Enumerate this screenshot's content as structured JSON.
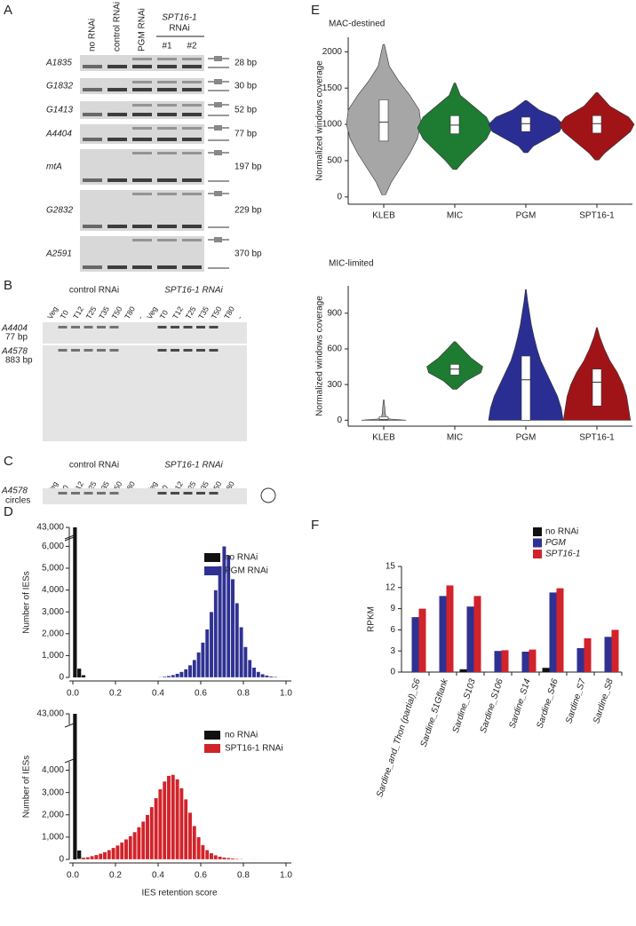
{
  "panel_labels": [
    "A",
    "B",
    "C",
    "D",
    "E",
    "F"
  ],
  "gel_a": {
    "lanes": [
      "no RNAi",
      "control RNAi",
      "PGM RNAi"
    ],
    "group": {
      "name": "SPT16-1",
      "suffix": "RNAi",
      "lanes": [
        "#1",
        "#2"
      ]
    },
    "rows": [
      {
        "name": "A1835",
        "size": "28 bp"
      },
      {
        "name": "G1832",
        "size": "30 bp"
      },
      {
        "name": "G1413",
        "size": "52 bp"
      },
      {
        "name": "A4404",
        "size": "77 bp"
      },
      {
        "name": "mtA",
        "size": "197 bp"
      },
      {
        "name": "G2832",
        "size": "229 bp"
      },
      {
        "name": "A2591",
        "size": "370 bp"
      }
    ]
  },
  "gel_b": {
    "groups": [
      "control RNAi",
      "SPT16-1 RNAi"
    ],
    "lanes": [
      "Veg",
      "T0",
      "T12",
      "T25",
      "T35",
      "T50",
      "T80",
      "-"
    ],
    "rows": [
      {
        "name": "A4404",
        "size": "77 bp"
      },
      {
        "name": "A4578",
        "size": "883 bp"
      }
    ]
  },
  "gel_c": {
    "groups": [
      "control RNAi",
      "SPT16-1 RNAi"
    ],
    "lanes": [
      "Veg",
      "T0",
      "T12",
      "T25",
      "T35",
      "T50",
      "T80",
      "-"
    ],
    "row": {
      "name": "A4578",
      "label": "circles"
    }
  },
  "chart_data": [
    {
      "type": "histogram",
      "ylabel": "Number of IESs",
      "bins": [
        0,
        0.02,
        0.04,
        0.06,
        0.08,
        0.1,
        0.12,
        0.14,
        0.16,
        0.18,
        0.2,
        0.22,
        0.24,
        0.26,
        0.28,
        0.3,
        0.32,
        0.34,
        0.36,
        0.38,
        0.4,
        0.42,
        0.44,
        0.46,
        0.48,
        0.5,
        0.52,
        0.54,
        0.56,
        0.58,
        0.6,
        0.62,
        0.64,
        0.66,
        0.68,
        0.7,
        0.72,
        0.74,
        0.76,
        0.78,
        0.8,
        0.82,
        0.84,
        0.86,
        0.88,
        0.9,
        0.92,
        0.94,
        0.96,
        0.98,
        1
      ],
      "series": [
        {
          "name": "no RNAi",
          "color": "#111111",
          "values": [
            43000,
            400,
            100,
            0,
            0,
            0,
            0,
            0,
            0,
            0,
            0,
            0,
            0,
            0,
            0,
            0,
            0,
            0,
            0,
            0,
            0,
            0,
            0,
            0,
            0,
            0,
            0,
            0,
            0,
            0,
            0,
            0,
            0,
            0,
            0,
            0,
            0,
            0,
            0,
            0,
            0,
            0,
            0,
            0,
            0,
            0,
            0,
            0,
            0,
            0
          ]
        },
        {
          "name": "PGM RNAi",
          "color": "#2f3192",
          "values": [
            0,
            0,
            0,
            0,
            0,
            0,
            0,
            0,
            0,
            0,
            0,
            0,
            0,
            0,
            0,
            0,
            0,
            0,
            0,
            0,
            20,
            40,
            70,
            110,
            170,
            260,
            380,
            560,
            800,
            1150,
            1600,
            2200,
            3000,
            4000,
            5100,
            6000,
            5600,
            4500,
            3400,
            2300,
            1400,
            800,
            450,
            260,
            150,
            90,
            50,
            30,
            15,
            8
          ]
        }
      ],
      "xlim": [
        0,
        1
      ],
      "xticks": [
        {
          "value": 0,
          "label": "0.0"
        },
        0.2,
        0.4,
        0.6,
        0.8,
        {
          "value": 1,
          "label": "1.0"
        }
      ],
      "ylim": [
        0,
        43000
      ],
      "ybreak": [
        6300,
        42800
      ],
      "yticks": [
        0,
        {
          "value": 1000,
          "label": "1,000"
        },
        {
          "value": 2000,
          "label": "2,000"
        },
        {
          "value": 3000,
          "label": "3,000"
        },
        {
          "value": 4000,
          "label": "4,000"
        },
        {
          "value": 5000,
          "label": "5,000"
        },
        {
          "value": 6000,
          "label": "6,000"
        },
        {
          "value": 43000,
          "label": "43,000"
        }
      ],
      "legend": "upper right"
    },
    {
      "type": "histogram",
      "ylabel": "Number of IESs",
      "xlabel": "IES retention score",
      "bins": [
        0,
        0.02,
        0.04,
        0.06,
        0.08,
        0.1,
        0.12,
        0.14,
        0.16,
        0.18,
        0.2,
        0.22,
        0.24,
        0.26,
        0.28,
        0.3,
        0.32,
        0.34,
        0.36,
        0.38,
        0.4,
        0.42,
        0.44,
        0.46,
        0.48,
        0.5,
        0.52,
        0.54,
        0.56,
        0.58,
        0.6,
        0.62,
        0.64,
        0.66,
        0.68,
        0.7,
        0.72,
        0.74,
        0.76,
        0.78,
        0.8,
        0.82,
        0.84,
        0.86,
        0.88,
        0.9,
        0.92,
        0.94,
        0.96,
        0.98,
        1
      ],
      "series": [
        {
          "name": "no RNAi",
          "color": "#111111",
          "values": [
            43000,
            400,
            80,
            0,
            0,
            0,
            0,
            0,
            0,
            0,
            0,
            0,
            0,
            0,
            0,
            0,
            0,
            0,
            0,
            0,
            0,
            0,
            0,
            0,
            0,
            0,
            0,
            0,
            0,
            0,
            0,
            0,
            0,
            0,
            0,
            0,
            0,
            0,
            0,
            0,
            0,
            0,
            0,
            0,
            0,
            0,
            0,
            0,
            0,
            0
          ]
        },
        {
          "name": "SPT16-1 RNAi",
          "color": "#d2232a",
          "values": [
            0,
            30,
            60,
            100,
            150,
            200,
            260,
            330,
            420,
            520,
            630,
            760,
            900,
            1050,
            1230,
            1450,
            1700,
            2000,
            2350,
            2750,
            3150,
            3500,
            3750,
            3800,
            3600,
            3200,
            2700,
            2100,
            1500,
            1000,
            650,
            420,
            280,
            190,
            130,
            90,
            65,
            45,
            30,
            20,
            12,
            8,
            5,
            3,
            2,
            0,
            0,
            0,
            0,
            0
          ]
        }
      ],
      "xlim": [
        0,
        1
      ],
      "xticks": [
        {
          "value": 0,
          "label": "0.0"
        },
        0.2,
        0.4,
        0.6,
        0.8,
        {
          "value": 1,
          "label": "1.0"
        }
      ],
      "ylim": [
        0,
        43000
      ],
      "ybreak": [
        4300,
        42800
      ],
      "yticks": [
        0,
        {
          "value": 1000,
          "label": "1,000"
        },
        {
          "value": 2000,
          "label": "2,000"
        },
        {
          "value": 3000,
          "label": "3,000"
        },
        {
          "value": 4000,
          "label": "4,000"
        },
        {
          "value": 43000,
          "label": "43,000"
        }
      ],
      "legend": "upper right"
    },
    {
      "type": "violin",
      "title": "MAC-destined",
      "ylabel": "Normalized windows coverage",
      "categories": [
        "KLEB",
        "MIC",
        "PGM",
        "SPT16-1"
      ],
      "colors": [
        "#a6a6a6",
        "#1e7b32",
        "#2a2e92",
        "#a01418"
      ],
      "q1": [
        770,
        870,
        900,
        880
      ],
      "median": [
        1030,
        990,
        1010,
        1010
      ],
      "q3": [
        1340,
        1120,
        1100,
        1120
      ],
      "profile_y": [
        [
          30,
          200,
          400,
          600,
          800,
          1000,
          1200,
          1400,
          1600,
          1800,
          2100
        ],
        [
          380,
          500,
          650,
          800,
          950,
          1100,
          1250,
          1400,
          1570
        ],
        [
          610,
          700,
          800,
          900,
          1000,
          1100,
          1200,
          1330
        ],
        [
          510,
          600,
          750,
          900,
          1000,
          1100,
          1250,
          1440
        ]
      ],
      "profile_w": [
        [
          0.05,
          0.2,
          0.45,
          0.7,
          0.9,
          1.0,
          0.95,
          0.7,
          0.4,
          0.15,
          0.02
        ],
        [
          0.05,
          0.25,
          0.55,
          0.85,
          1.0,
          0.85,
          0.5,
          0.15,
          0.02
        ],
        [
          0.05,
          0.2,
          0.55,
          0.9,
          1.0,
          0.8,
          0.35,
          0.02
        ],
        [
          0.05,
          0.2,
          0.55,
          0.9,
          1.0,
          0.85,
          0.35,
          0.02
        ]
      ],
      "ylim": [
        -100,
        2200
      ],
      "yticks": [
        0,
        500,
        1000,
        1500,
        2000
      ]
    },
    {
      "type": "violin",
      "title": "MIC-limited",
      "ylabel": "Normalized windows coverage",
      "categories": [
        "KLEB",
        "MIC",
        "PGM",
        "SPT16-1"
      ],
      "colors": [
        "#a6a6a6",
        "#1e7b32",
        "#2a2e92",
        "#a01418"
      ],
      "q1": [
        0,
        380,
        0,
        120
      ],
      "median": [
        5,
        430,
        340,
        320
      ],
      "q3": [
        30,
        470,
        540,
        430
      ],
      "profile_y": [
        [
          0,
          10,
          30,
          60,
          100,
          170
        ],
        [
          260,
          330,
          400,
          450,
          520,
          600,
          660
        ],
        [
          0,
          100,
          200,
          300,
          400,
          500,
          600,
          700,
          800,
          900,
          1000,
          1100
        ],
        [
          0,
          100,
          200,
          300,
          400,
          500,
          600,
          700,
          780
        ]
      ],
      "profile_w": [
        [
          0.6,
          0.15,
          0.06,
          0.04,
          0.03,
          0.01
        ],
        [
          0.05,
          0.3,
          0.7,
          0.75,
          0.45,
          0.2,
          0.02
        ],
        [
          1.0,
          0.95,
          0.85,
          0.7,
          0.55,
          0.4,
          0.3,
          0.22,
          0.15,
          0.1,
          0.05,
          0.01
        ],
        [
          0.9,
          0.85,
          0.8,
          0.7,
          0.55,
          0.35,
          0.2,
          0.08,
          0.01
        ]
      ],
      "ylim": [
        -50,
        1130
      ],
      "yticks": [
        0,
        300,
        600,
        900
      ]
    },
    {
      "type": "bar",
      "ylabel": "RPKM",
      "categories": [
        "Sardine_and_Thon (partial)_S6",
        "Sardine_51Gflank",
        "Sardine_S103",
        "Sardine_S106",
        "Sardine_S14",
        "Sardine_S46",
        "Sardine_S7",
        "Sardine_S8"
      ],
      "series": [
        {
          "name": "no RNAi",
          "color": "#111111",
          "values": [
            0,
            0,
            0.4,
            0,
            0,
            0.6,
            0,
            0
          ]
        },
        {
          "name": "PGM",
          "color": "#2f3192",
          "values": [
            7.8,
            10.8,
            9.3,
            3.0,
            2.9,
            11.3,
            3.4,
            5.0
          ]
        },
        {
          "name": "SPT16-1",
          "color": "#d2232a",
          "values": [
            9.0,
            12.3,
            10.8,
            3.1,
            3.2,
            11.9,
            4.8,
            6.0
          ]
        }
      ],
      "ylim": [
        0,
        15
      ],
      "yticks": [
        0,
        3,
        6,
        9,
        12,
        15
      ],
      "legend": "upper right"
    }
  ]
}
